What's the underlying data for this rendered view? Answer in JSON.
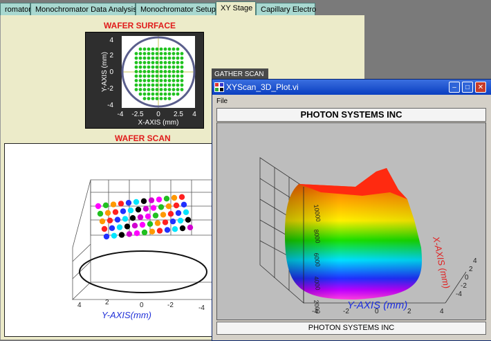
{
  "tabs": [
    {
      "label": "romator"
    },
    {
      "label": "Monochromator Data Analysis"
    },
    {
      "label": "Monochromator Setup"
    },
    {
      "label": "XY Stage"
    },
    {
      "label": "Capillary Electro"
    }
  ],
  "wafer_surface": {
    "title": "WAFER SURFACE",
    "xlabel": "X-AXIS (mm)",
    "ylabel": "Y-AXIS (mm)",
    "x_ticks": [
      "-4",
      "-2.5",
      "0",
      "2.5",
      "4"
    ],
    "y_ticks": [
      "4",
      "2",
      "0",
      "-2",
      "-4"
    ]
  },
  "wafer_scan": {
    "title": "WAFER SCAN",
    "ylabel": "Y-AXIS(mm)",
    "y_ticks": [
      "4",
      "2",
      "0",
      "-2",
      "-4"
    ]
  },
  "gather_button": "GATHER SCAN",
  "window": {
    "title": "XYScan_3D_Plot.vi",
    "menu_file": "File",
    "plot_title": "PHOTON SYSTEMS INC",
    "footer": "PHOTON SYSTEMS INC",
    "plot": {
      "yaxis_label": "Y-AXIS (mm)",
      "xaxis_label": "X-AXIS (mm)",
      "z_ticks": [
        "10000",
        "8000",
        "6000",
        "4000",
        "2000"
      ],
      "y_ticks": [
        "-4",
        "-2",
        "0",
        "2",
        "4"
      ],
      "x_ticks": [
        "-4",
        "-2",
        "0",
        "2",
        "4"
      ]
    }
  },
  "colors": {
    "tab_bg": "#a8d8d0",
    "panel_bg": "#ecebc9",
    "red_title": "#e01a1a",
    "titlebar": "#0a3ec0"
  }
}
